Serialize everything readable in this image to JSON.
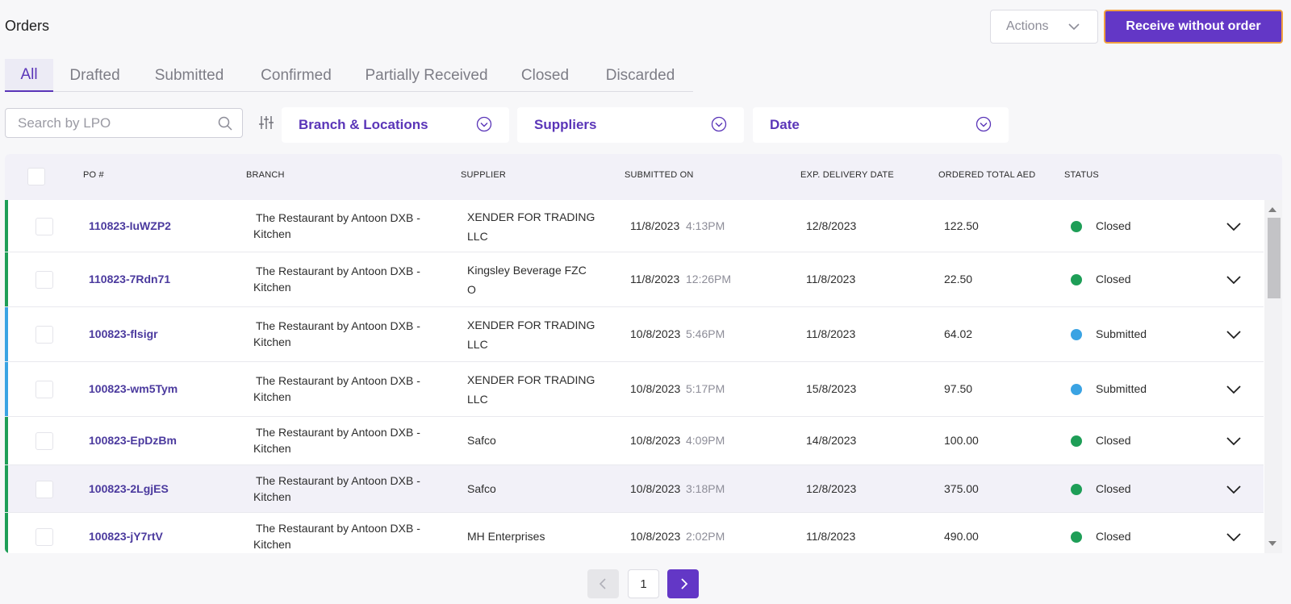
{
  "header": {
    "title": "Orders",
    "actions_label": "Actions",
    "receive_label": "Receive without order"
  },
  "tabs": [
    {
      "label": "All",
      "active": true
    },
    {
      "label": "Drafted",
      "active": false
    },
    {
      "label": "Submitted",
      "active": false
    },
    {
      "label": "Confirmed",
      "active": false
    },
    {
      "label": "Partially Received",
      "active": false
    },
    {
      "label": "Closed",
      "active": false
    },
    {
      "label": "Discarded",
      "active": false
    }
  ],
  "filters": {
    "search_placeholder": "Search by LPO",
    "branch_label": "Branch & Locations",
    "suppliers_label": "Suppliers",
    "date_label": "Date"
  },
  "table": {
    "columns": {
      "po": "PO #",
      "branch": "BRANCH",
      "supplier": "SUPPLIER",
      "submitted_on": "SUBMITTED ON",
      "exp_delivery": "EXP. DELIVERY DATE",
      "ordered_total": "ORDERED TOTAL AED",
      "status": "STATUS"
    },
    "rows": [
      {
        "po": "110823-IuWZP2",
        "branch_1": "The Restaurant by Antoon DXB -",
        "branch_2": "Kitchen",
        "supplier_1": "XENDER FOR TRADING",
        "supplier_2": "LLC",
        "submitted_date": "11/8/2023",
        "submitted_time": "4:13PM",
        "exp_delivery": "12/8/2023",
        "total": "122.50",
        "status": "Closed"
      },
      {
        "po": "110823-7Rdn71",
        "branch_1": "The Restaurant by Antoon DXB -",
        "branch_2": "Kitchen",
        "supplier_1": "Kingsley Beverage FZC",
        "supplier_2": "O",
        "submitted_date": "11/8/2023",
        "submitted_time": "12:26PM",
        "exp_delivery": "11/8/2023",
        "total": "22.50",
        "status": "Closed"
      },
      {
        "po": "100823-flsigr",
        "branch_1": "The Restaurant by Antoon DXB -",
        "branch_2": "Kitchen",
        "supplier_1": "XENDER FOR TRADING",
        "supplier_2": "LLC",
        "submitted_date": "10/8/2023",
        "submitted_time": "5:46PM",
        "exp_delivery": "11/8/2023",
        "total": "64.02",
        "status": "Submitted"
      },
      {
        "po": "100823-wm5Tym",
        "branch_1": "The Restaurant by Antoon DXB -",
        "branch_2": "Kitchen",
        "supplier_1": "XENDER FOR TRADING",
        "supplier_2": "LLC",
        "submitted_date": "10/8/2023",
        "submitted_time": "5:17PM",
        "exp_delivery": "15/8/2023",
        "total": "97.50",
        "status": "Submitted"
      },
      {
        "po": "100823-EpDzBm",
        "branch_1": "The Restaurant by Antoon DXB -",
        "branch_2": "Kitchen",
        "supplier_1": "Safco",
        "supplier_2": "",
        "submitted_date": "10/8/2023",
        "submitted_time": "4:09PM",
        "exp_delivery": "14/8/2023",
        "total": "100.00",
        "status": "Closed"
      },
      {
        "po": "100823-2LgjES",
        "branch_1": "The Restaurant by Antoon DXB -",
        "branch_2": "Kitchen",
        "supplier_1": "Safco",
        "supplier_2": "",
        "submitted_date": "10/8/2023",
        "submitted_time": "3:18PM",
        "exp_delivery": "12/8/2023",
        "total": "375.00",
        "status": "Closed"
      },
      {
        "po": "100823-jY7rtV",
        "branch_1": "The Restaurant by Antoon DXB -",
        "branch_2": "Kitchen",
        "supplier_1": "MH Enterprises",
        "supplier_2": "",
        "submitted_date": "10/8/2023",
        "submitted_time": "2:02PM",
        "exp_delivery": "11/8/2023",
        "total": "490.00",
        "status": "Closed"
      }
    ]
  },
  "pagination": {
    "current_page": "1"
  },
  "colors": {
    "accent": "#6337c6",
    "closed": "#1e9e57",
    "submitted": "#3aa3e3"
  }
}
